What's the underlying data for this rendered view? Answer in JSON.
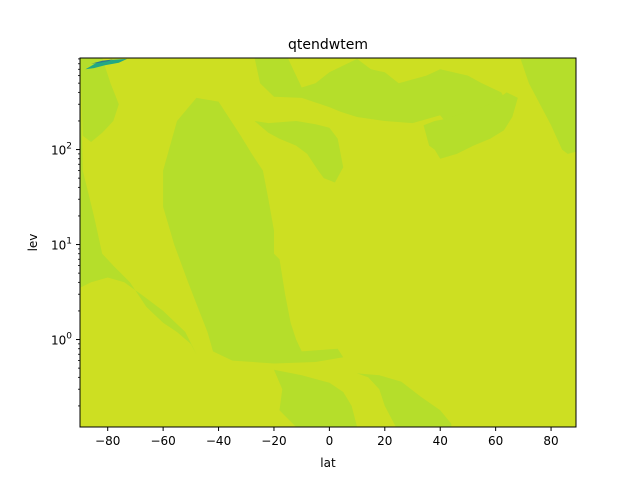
{
  "chart_data": {
    "type": "heatmap",
    "subtype": "filled-contour",
    "title": "qtendwtem",
    "xlabel": "lat",
    "ylabel": "lev",
    "xlim": [
      -90,
      89
    ],
    "ylim": [
      0.12,
      920
    ],
    "yscale": "log",
    "xticks": [
      -80,
      -60,
      -40,
      -20,
      0,
      20,
      40,
      60,
      80
    ],
    "xtick_labels": [
      "−80",
      "−60",
      "−40",
      "−20",
      "0",
      "20",
      "40",
      "60",
      "80"
    ],
    "yticks": [
      1,
      10,
      100
    ],
    "ytick_labels": [
      {
        "base": "10",
        "exp": "0"
      },
      {
        "base": "10",
        "exp": "1"
      },
      {
        "base": "10",
        "exp": "2"
      }
    ],
    "grid": false,
    "legend": "none",
    "colors": {
      "background_level": "#cddf22",
      "secondary_level": "#b5de2b",
      "mid_level": "#22a884",
      "low_level": "#2a788e",
      "min_level": "#414487"
    },
    "regions": [
      {
        "level": "secondary",
        "polygon": [
          [
            -90,
            920
          ],
          [
            -89,
            60
          ],
          [
            -85,
            20
          ],
          [
            -82,
            8
          ],
          [
            -78,
            6
          ],
          [
            -72,
            4
          ],
          [
            -66,
            2.2
          ],
          [
            -60,
            1.5
          ],
          [
            -55,
            1.2
          ],
          [
            -50,
            0.9
          ],
          [
            -48,
            0.7
          ],
          [
            -52,
            1.2
          ],
          [
            -60,
            2
          ],
          [
            -68,
            3
          ],
          [
            -74,
            4
          ],
          [
            -80,
            4.5
          ],
          [
            -86,
            4
          ],
          [
            -90,
            3.5
          ]
        ]
      },
      {
        "level": "secondary",
        "polygon": [
          [
            -90,
            920
          ],
          [
            -82,
            920
          ],
          [
            -79,
            500
          ],
          [
            -76,
            300
          ],
          [
            -78,
            200
          ],
          [
            -82,
            150
          ],
          [
            -86,
            120
          ],
          [
            -89,
            140
          ]
        ]
      },
      {
        "level": "secondary",
        "polygon": [
          [
            -60,
            60
          ],
          [
            -55,
            200
          ],
          [
            -48,
            350
          ],
          [
            -40,
            320
          ],
          [
            -32,
            140
          ],
          [
            -28,
            90
          ],
          [
            -24,
            60
          ],
          [
            -22,
            30
          ],
          [
            -20,
            14
          ],
          [
            -20,
            8
          ],
          [
            -18,
            7
          ],
          [
            -16,
            3
          ],
          [
            -14,
            1.5
          ],
          [
            -12,
            1
          ],
          [
            -10,
            0.75
          ],
          [
            3,
            0.8
          ],
          [
            5,
            0.65
          ],
          [
            -5,
            0.58
          ],
          [
            -20,
            0.56
          ],
          [
            -35,
            0.6
          ],
          [
            -42,
            0.75
          ],
          [
            -44,
            1.2
          ],
          [
            -47,
            2
          ],
          [
            -51,
            4
          ],
          [
            -56,
            10
          ],
          [
            -60,
            25
          ]
        ]
      },
      {
        "level": "secondary",
        "polygon": [
          [
            -20,
            0.48
          ],
          [
            -10,
            0.42
          ],
          [
            0,
            0.35
          ],
          [
            5,
            0.28
          ],
          [
            8,
            0.2
          ],
          [
            10,
            0.12
          ],
          [
            -12,
            0.12
          ],
          [
            -18,
            0.18
          ],
          [
            -17,
            0.3
          ]
        ]
      },
      {
        "level": "secondary",
        "polygon": [
          [
            10,
            0.44
          ],
          [
            18,
            0.42
          ],
          [
            26,
            0.36
          ],
          [
            33,
            0.25
          ],
          [
            40,
            0.18
          ],
          [
            44,
            0.13
          ],
          [
            44,
            0.12
          ],
          [
            24,
            0.12
          ],
          [
            20,
            0.2
          ],
          [
            18,
            0.3
          ],
          [
            14,
            0.4
          ]
        ]
      },
      {
        "level": "secondary",
        "polygon": [
          [
            -27,
            200
          ],
          [
            -22,
            190
          ],
          [
            -12,
            200
          ],
          [
            -5,
            185
          ],
          [
            0,
            170
          ],
          [
            3,
            130
          ],
          [
            5,
            65
          ],
          [
            2,
            45
          ],
          [
            -2,
            50
          ],
          [
            -4,
            60
          ],
          [
            -8,
            90
          ],
          [
            -12,
            110
          ],
          [
            -18,
            130
          ],
          [
            -22,
            150
          ]
        ]
      },
      {
        "level": "secondary",
        "polygon": [
          [
            -27,
            920
          ],
          [
            -25,
            500
          ],
          [
            -20,
            360
          ],
          [
            -10,
            350
          ],
          [
            0,
            280
          ],
          [
            4,
            250
          ],
          [
            10,
            220
          ],
          [
            20,
            200
          ],
          [
            30,
            190
          ],
          [
            40,
            230
          ],
          [
            45,
            150
          ],
          [
            50,
            160
          ],
          [
            55,
            200
          ],
          [
            60,
            250
          ],
          [
            65,
            280
          ],
          [
            62,
            400
          ],
          [
            55,
            500
          ],
          [
            50,
            600
          ],
          [
            40,
            700
          ],
          [
            35,
            600
          ],
          [
            25,
            500
          ],
          [
            20,
            650
          ],
          [
            15,
            700
          ],
          [
            10,
            900
          ],
          [
            0,
            650
          ],
          [
            -5,
            500
          ],
          [
            -10,
            450
          ],
          [
            -15,
            920
          ]
        ]
      },
      {
        "level": "secondary",
        "polygon": [
          [
            34,
            180
          ],
          [
            36,
            110
          ],
          [
            38,
            100
          ],
          [
            40,
            80
          ],
          [
            46,
            90
          ],
          [
            52,
            110
          ],
          [
            58,
            130
          ],
          [
            63,
            160
          ],
          [
            66,
            220
          ],
          [
            68,
            350
          ],
          [
            64,
            400
          ],
          [
            58,
            300
          ],
          [
            50,
            250
          ],
          [
            42,
            210
          ],
          [
            38,
            200
          ]
        ]
      },
      {
        "level": "secondary",
        "polygon": [
          [
            69,
            900
          ],
          [
            72,
            500
          ],
          [
            76,
            300
          ],
          [
            80,
            180
          ],
          [
            84,
            100
          ],
          [
            86,
            90
          ],
          [
            89,
            95
          ],
          [
            89,
            920
          ]
        ]
      },
      {
        "level": "mid",
        "polygon": [
          [
            -88,
            700
          ],
          [
            -84,
            820
          ],
          [
            -78,
            880
          ],
          [
            -73,
            900
          ],
          [
            -76,
            820
          ],
          [
            -81,
            770
          ],
          [
            -85,
            720
          ]
        ]
      },
      {
        "level": "low",
        "polygon": [
          [
            -86,
            800
          ],
          [
            -82,
            860
          ],
          [
            -78,
            890
          ],
          [
            -80,
            850
          ],
          [
            -83,
            820
          ]
        ]
      }
    ]
  }
}
